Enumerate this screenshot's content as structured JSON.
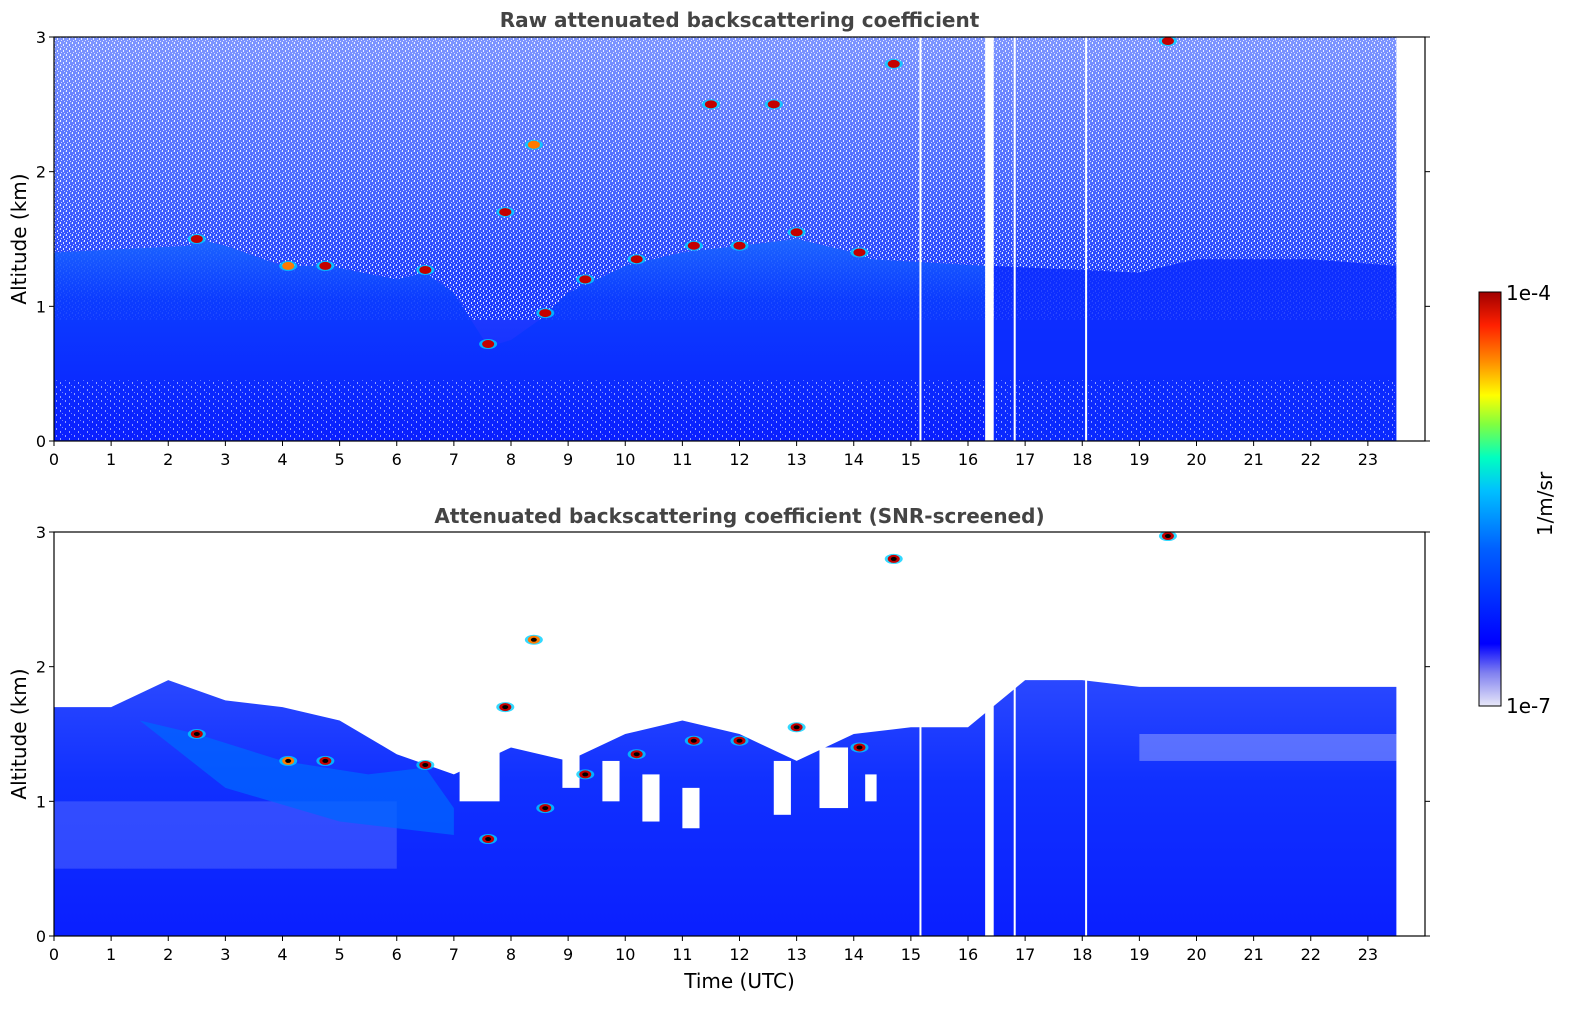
{
  "chart_data": [
    {
      "type": "heatmap",
      "title": "Raw attenuated backscattering coefficient",
      "xlabel": "",
      "ylabel": "Altitude (km)",
      "xlim": [
        0,
        24
      ],
      "ylim": [
        0,
        3
      ],
      "x_ticks": [
        "0",
        "1",
        "2",
        "3",
        "4",
        "5",
        "6",
        "7",
        "8",
        "9",
        "10",
        "11",
        "12",
        "13",
        "14",
        "15",
        "16",
        "17",
        "18",
        "19",
        "20",
        "21",
        "22",
        "23"
      ],
      "y_ticks": [
        "0",
        "1",
        "2",
        "3"
      ],
      "data_end_time": 23.5,
      "data_gaps": [
        [
          16.3,
          16.45
        ],
        [
          15.15,
          15.17
        ],
        [
          16.8,
          16.82
        ],
        [
          18.05,
          18.07
        ]
      ],
      "screened": false,
      "features": {
        "boundary_layer_top_km": [
          [
            2.5,
            1.5
          ],
          [
            3,
            1.45
          ],
          [
            4,
            1.3
          ],
          [
            4.8,
            1.3
          ],
          [
            6,
            1.2
          ],
          [
            6.5,
            1.25
          ],
          [
            7,
            1.1
          ],
          [
            7.6,
            0.7
          ],
          [
            8,
            0.75
          ],
          [
            8.5,
            0.9
          ],
          [
            9,
            1.1
          ],
          [
            10,
            1.3
          ],
          [
            11,
            1.4
          ],
          [
            12,
            1.45
          ],
          [
            13,
            1.5
          ],
          [
            14,
            1.4
          ],
          [
            14.3,
            1.35
          ]
        ],
        "cloud_patches": [
          {
            "t": 2.5,
            "alt": 1.5,
            "level": "high"
          },
          {
            "t": 4.1,
            "alt": 1.3,
            "level": "mid"
          },
          {
            "t": 4.75,
            "alt": 1.3,
            "level": "high"
          },
          {
            "t": 6.5,
            "alt": 1.27,
            "level": "high"
          },
          {
            "t": 7.6,
            "alt": 0.72,
            "level": "high"
          },
          {
            "t": 8.6,
            "alt": 0.95,
            "level": "high"
          },
          {
            "t": 9.3,
            "alt": 1.2,
            "level": "high"
          },
          {
            "t": 10.2,
            "alt": 1.35,
            "level": "high"
          },
          {
            "t": 11.2,
            "alt": 1.45,
            "level": "high"
          },
          {
            "t": 12.0,
            "alt": 1.45,
            "level": "high"
          },
          {
            "t": 13.0,
            "alt": 1.55,
            "level": "high"
          },
          {
            "t": 14.1,
            "alt": 1.4,
            "level": "high"
          },
          {
            "t": 7.9,
            "alt": 1.7,
            "level": "high"
          },
          {
            "t": 8.4,
            "alt": 2.2,
            "level": "mid"
          },
          {
            "t": 11.5,
            "alt": 2.5,
            "level": "high"
          },
          {
            "t": 12.6,
            "alt": 2.5,
            "level": "high"
          },
          {
            "t": 14.7,
            "alt": 2.8,
            "level": "high"
          },
          {
            "t": 19.5,
            "alt": 2.97,
            "level": "high"
          }
        ]
      }
    },
    {
      "type": "heatmap",
      "title": "Attenuated backscattering coefficient (SNR-screened)",
      "xlabel": "Time (UTC)",
      "ylabel": "Altitude (km)",
      "xlim": [
        0,
        24
      ],
      "ylim": [
        0,
        3
      ],
      "x_ticks": [
        "0",
        "1",
        "2",
        "3",
        "4",
        "5",
        "6",
        "7",
        "8",
        "9",
        "10",
        "11",
        "12",
        "13",
        "14",
        "15",
        "16",
        "17",
        "18",
        "19",
        "20",
        "21",
        "22",
        "23"
      ],
      "y_ticks": [
        "0",
        "1",
        "2",
        "3"
      ],
      "data_end_time": 23.5,
      "data_gaps": [
        [
          16.3,
          16.45
        ],
        [
          15.15,
          15.17
        ],
        [
          16.8,
          16.82
        ],
        [
          18.05,
          18.07
        ]
      ],
      "screened": true,
      "valid_top_km": [
        [
          0,
          1.7
        ],
        [
          1,
          1.7
        ],
        [
          2,
          1.9
        ],
        [
          3,
          1.75
        ],
        [
          4,
          1.7
        ],
        [
          5,
          1.6
        ],
        [
          6,
          1.35
        ],
        [
          7,
          1.2
        ],
        [
          8,
          1.4
        ],
        [
          9,
          1.3
        ],
        [
          10,
          1.5
        ],
        [
          11,
          1.6
        ],
        [
          12,
          1.5
        ],
        [
          13,
          1.3
        ],
        [
          14,
          1.5
        ],
        [
          15,
          1.55
        ],
        [
          16,
          1.55
        ],
        [
          17,
          1.9
        ],
        [
          18,
          1.9
        ],
        [
          19,
          1.85
        ],
        [
          20,
          1.85
        ],
        [
          21,
          1.85
        ],
        [
          22,
          1.85
        ],
        [
          23,
          1.85
        ],
        [
          23.5,
          1.85
        ]
      ]
    }
  ],
  "colorbar": {
    "label": "1/m/sr",
    "max_label": "1e-4",
    "min_label": "1e-7",
    "colormap": [
      "#e8e8f8",
      "#8080f0",
      "#0000ff",
      "#0060ff",
      "#00c0ff",
      "#00ffc0",
      "#80ff40",
      "#ffff00",
      "#ff9000",
      "#ff2000",
      "#a00000"
    ]
  },
  "colors": {
    "background_blue": "#0a1fff",
    "deep_blue": "#0010e0",
    "light_blue": "#3a5cff",
    "pale": "#b8c4ff"
  }
}
